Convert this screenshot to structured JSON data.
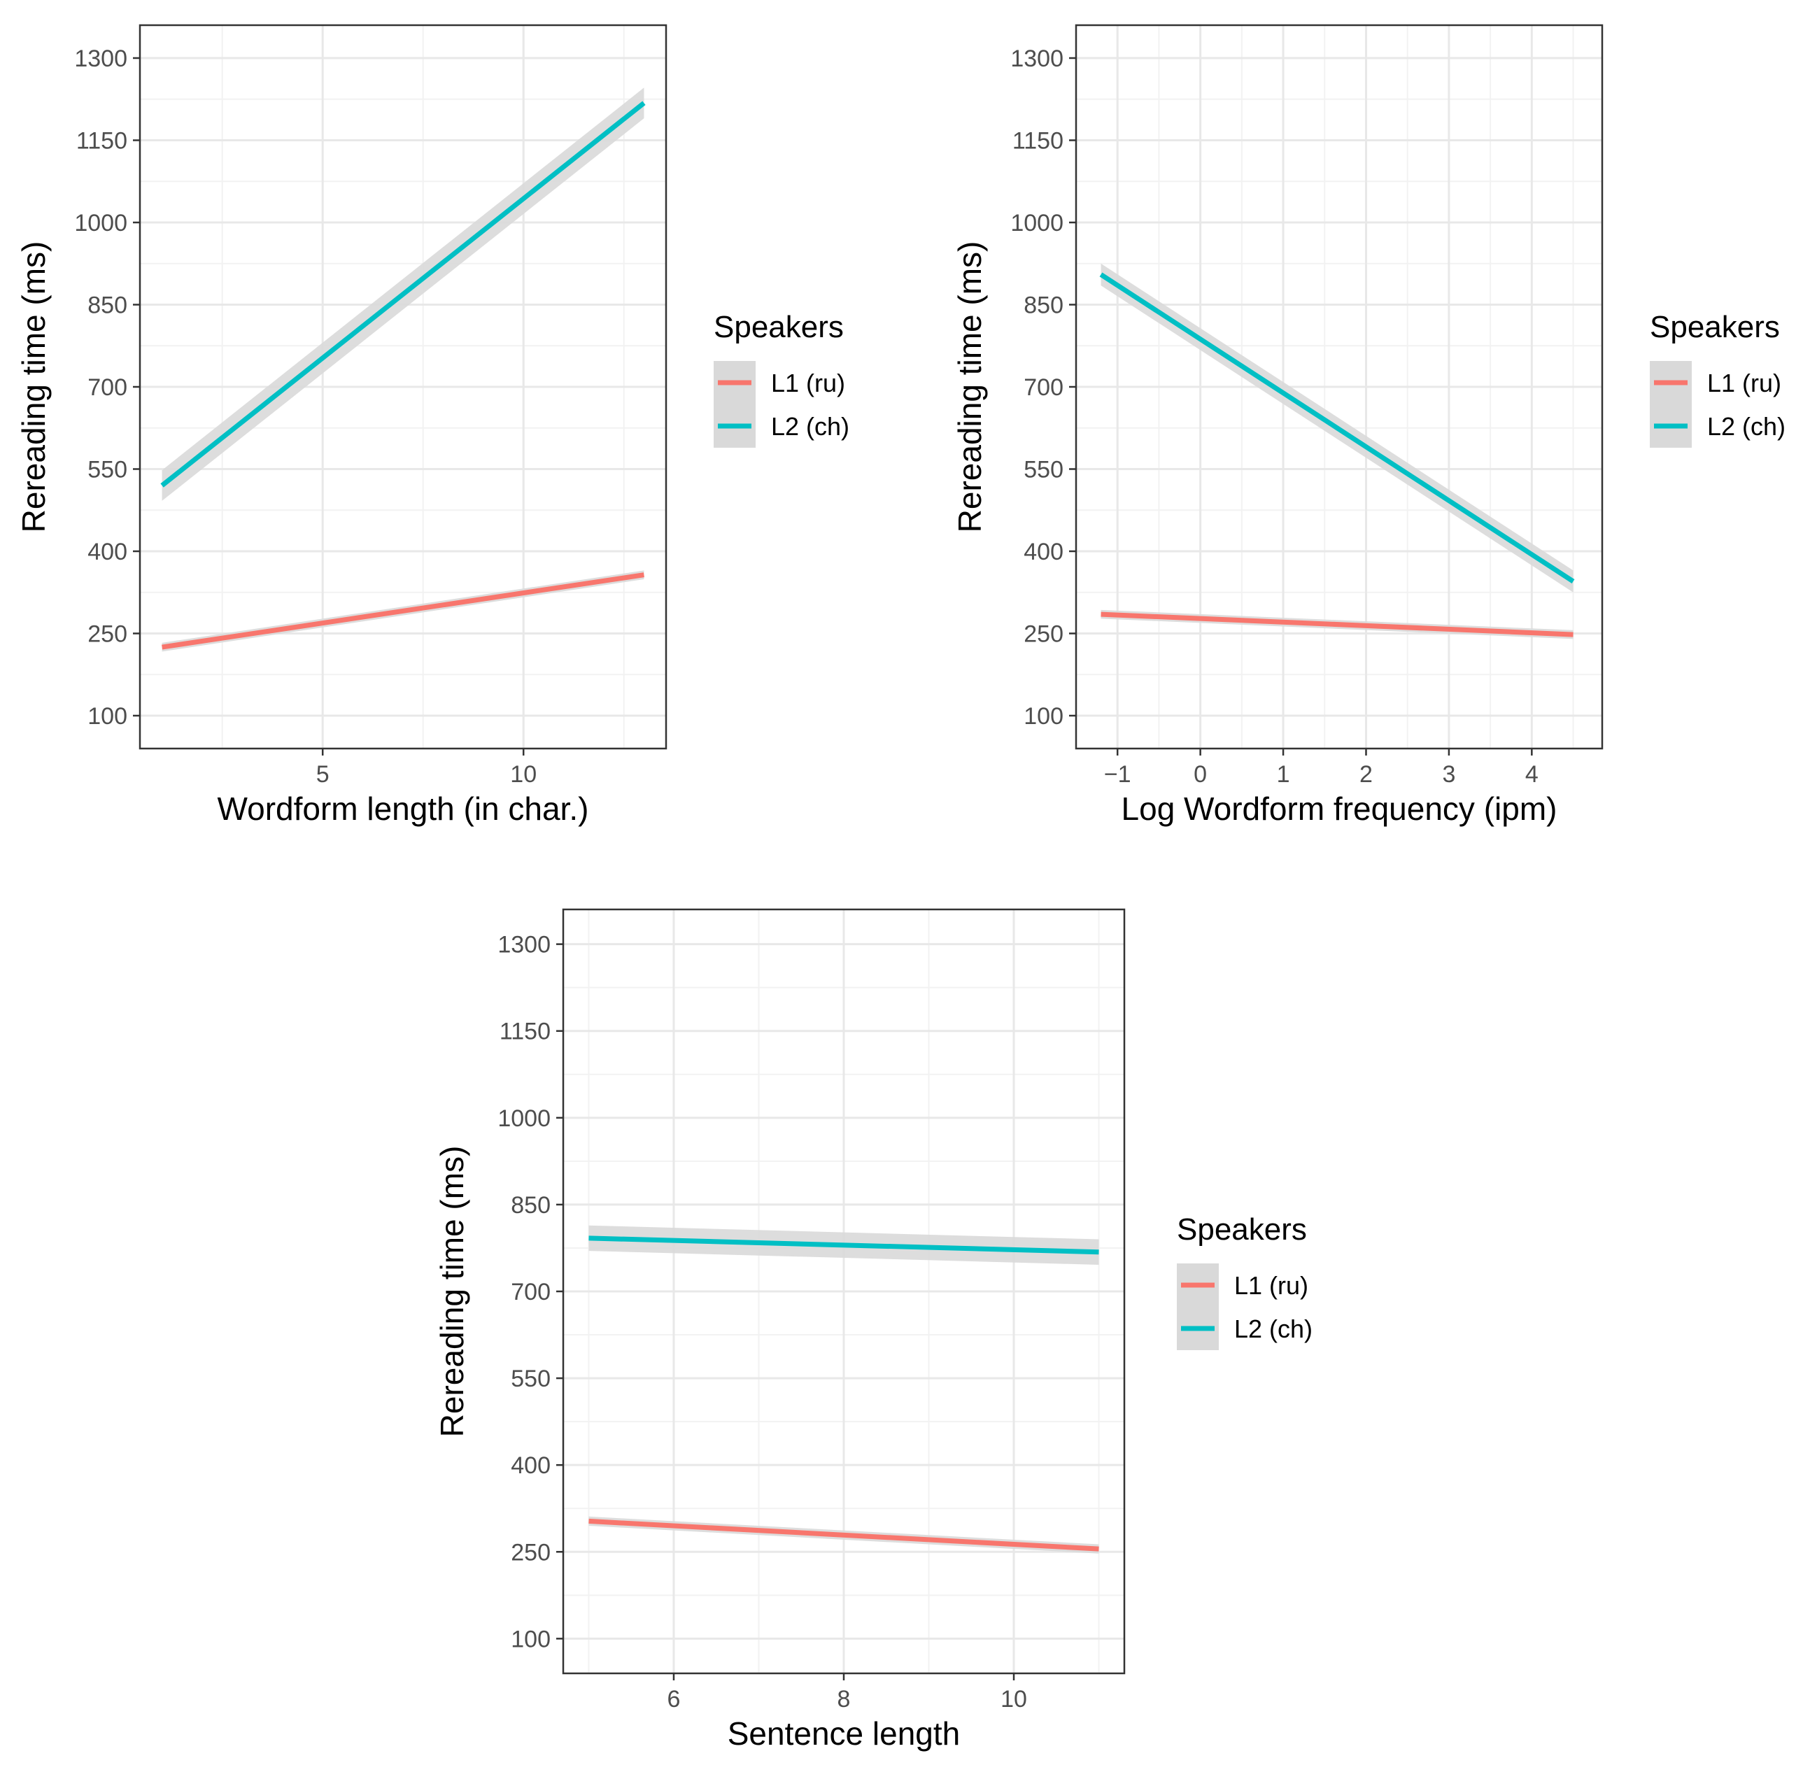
{
  "figure": {
    "description_free": true
  },
  "legend": {
    "title": "Speakers",
    "entries": [
      {
        "label": "L1 (ru)",
        "color": "#F8766D"
      },
      {
        "label": "L2 (ch)",
        "color": "#00BFC4"
      }
    ],
    "ribbon_color": "#d9d9d9"
  },
  "chart_data": [
    {
      "type": "line",
      "title": "",
      "xlabel": "Wordform length (in char.)",
      "ylabel": "Rereading time (ms)",
      "xlim": [
        0.45,
        13.55
      ],
      "ylim": [
        40,
        1360
      ],
      "xticks": [
        5,
        10
      ],
      "xtick_labels": [
        "5",
        "10"
      ],
      "xminor": [
        2.5,
        7.5,
        12.5
      ],
      "yticks": [
        100,
        250,
        400,
        550,
        700,
        850,
        1000,
        1150,
        1300
      ],
      "ytick_labels": [
        "100",
        "250",
        "400",
        "550",
        "700",
        "850",
        "1000",
        "1150",
        "1300"
      ],
      "grid": true,
      "legend_position": "right",
      "series": [
        {
          "name": "L1 (ru)",
          "x": [
            1,
            13
          ],
          "y": [
            225,
            357
          ],
          "ci": 8
        },
        {
          "name": "L2 (ch)",
          "x": [
            1,
            13
          ],
          "y": [
            520,
            1218
          ],
          "ci": 28
        }
      ]
    },
    {
      "type": "line",
      "title": "",
      "xlabel": "Log Wordform frequency (ipm)",
      "ylabel": "Rereading time (ms)",
      "xlim": [
        -1.5,
        4.85
      ],
      "ylim": [
        40,
        1360
      ],
      "xticks": [
        -1,
        0,
        1,
        2,
        3,
        4
      ],
      "xtick_labels": [
        "−1",
        "0",
        "1",
        "2",
        "3",
        "4"
      ],
      "xminor": [
        -0.5,
        0.5,
        1.5,
        2.5,
        3.5,
        4.5
      ],
      "yticks": [
        100,
        250,
        400,
        550,
        700,
        850,
        1000,
        1150,
        1300
      ],
      "ytick_labels": [
        "100",
        "250",
        "400",
        "550",
        "700",
        "850",
        "1000",
        "1150",
        "1300"
      ],
      "grid": true,
      "legend_position": "right",
      "series": [
        {
          "name": "L1 (ru)",
          "x": [
            -1.2,
            4.5
          ],
          "y": [
            285,
            248
          ],
          "ci": 8
        },
        {
          "name": "L2 (ch)",
          "x": [
            -1.2,
            4.5
          ],
          "y": [
            905,
            345
          ],
          "ci": 20
        }
      ]
    },
    {
      "type": "line",
      "title": "",
      "xlabel": "Sentence length",
      "ylabel": "Rereading time (ms)",
      "xlim": [
        4.7,
        11.3
      ],
      "ylim": [
        40,
        1360
      ],
      "xticks": [
        6,
        8,
        10
      ],
      "xtick_labels": [
        "6",
        "8",
        "10"
      ],
      "xminor": [
        5,
        7,
        9,
        11
      ],
      "yticks": [
        100,
        250,
        400,
        550,
        700,
        850,
        1000,
        1150,
        1300
      ],
      "ytick_labels": [
        "100",
        "250",
        "400",
        "550",
        "700",
        "850",
        "1000",
        "1150",
        "1300"
      ],
      "grid": true,
      "legend_position": "right",
      "series": [
        {
          "name": "L1 (ru)",
          "x": [
            5,
            11
          ],
          "y": [
            303,
            255
          ],
          "ci": 8
        },
        {
          "name": "L2 (ch)",
          "x": [
            5,
            11
          ],
          "y": [
            792,
            768
          ],
          "ci": 22
        }
      ]
    }
  ]
}
